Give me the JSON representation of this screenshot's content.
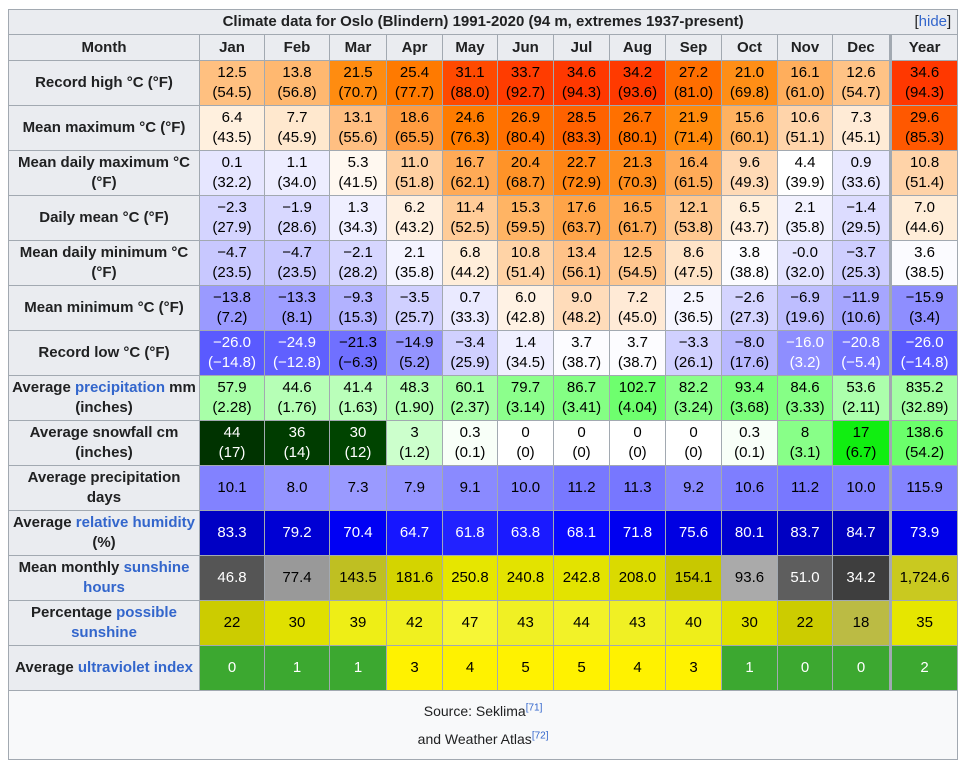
{
  "title": "Climate data for Oslo (Blindern) 1991-2020 (94 m, extremes 1937-present)",
  "hide_link": {
    "open": "[",
    "label": "hide",
    "close": "]"
  },
  "header": {
    "month": "Month",
    "months": [
      "Jan",
      "Feb",
      "Mar",
      "Apr",
      "May",
      "Jun",
      "Jul",
      "Aug",
      "Sep",
      "Oct",
      "Nov",
      "Dec"
    ],
    "year": "Year"
  },
  "rows": [
    {
      "label": [
        {
          "t": "Record high °C (°F)"
        }
      ],
      "cells": [
        [
          "12.5",
          "(54.5)",
          "#ffc080"
        ],
        [
          "13.8",
          "(56.8)",
          "#ffb870"
        ],
        [
          "21.5",
          "(70.7)",
          "#ff8c10"
        ],
        [
          "25.4",
          "(77.7)",
          "#ff7a00"
        ],
        [
          "31.1",
          "(88.0)",
          "#ff4a00"
        ],
        [
          "33.7",
          "(92.7)",
          "#ff3c00"
        ],
        [
          "34.6",
          "(94.3)",
          "#ff3800"
        ],
        [
          "34.2",
          "(93.6)",
          "#ff3a00"
        ],
        [
          "27.2",
          "(81.0)",
          "#ff6e00"
        ],
        [
          "21.0",
          "(69.8)",
          "#ff8e16"
        ],
        [
          "16.1",
          "(61.0)",
          "#ffae5c"
        ],
        [
          "12.6",
          "(54.7)",
          "#ffc386"
        ],
        [
          "34.6",
          "(94.3)",
          "#ff3800"
        ]
      ]
    },
    {
      "label": [
        {
          "t": "Mean maximum °C (°F)"
        }
      ],
      "cells": [
        [
          "6.4",
          "(43.5)",
          "#fff0de"
        ],
        [
          "7.7",
          "(45.9)",
          "#ffe8ce"
        ],
        [
          "13.1",
          "(55.6)",
          "#ffbf82"
        ],
        [
          "18.6",
          "(65.5)",
          "#ff9c40"
        ],
        [
          "24.6",
          "(76.3)",
          "#ff7c00"
        ],
        [
          "26.9",
          "(80.4)",
          "#ff7000"
        ],
        [
          "28.5",
          "(83.3)",
          "#ff6200"
        ],
        [
          "26.7",
          "(80.1)",
          "#ff7000"
        ],
        [
          "21.9",
          "(71.4)",
          "#ff8a0c"
        ],
        [
          "15.6",
          "(60.1)",
          "#ffb260"
        ],
        [
          "10.6",
          "(51.1)",
          "#ffd4aa"
        ],
        [
          "7.3",
          "(45.1)",
          "#ffebd6"
        ],
        [
          "29.6",
          "(85.3)",
          "#ff5800"
        ]
      ]
    },
    {
      "label": [
        {
          "t": "Mean daily maximum °C (°F)"
        }
      ],
      "cells": [
        [
          "0.1",
          "(32.2)",
          "#e6e6ff"
        ],
        [
          "1.1",
          "(34.0)",
          "#ededff"
        ],
        [
          "5.3",
          "(41.5)",
          "#fff8f0"
        ],
        [
          "11.0",
          "(51.8)",
          "#ffd0a2"
        ],
        [
          "16.7",
          "(62.1)",
          "#ffaa56"
        ],
        [
          "20.4",
          "(68.7)",
          "#ff9328"
        ],
        [
          "22.7",
          "(72.9)",
          "#ff8514"
        ],
        [
          "21.3",
          "(70.3)",
          "#ff8e1e"
        ],
        [
          "16.4",
          "(61.5)",
          "#ffab58"
        ],
        [
          "9.6",
          "(49.3)",
          "#ffdab6"
        ],
        [
          "4.4",
          "(39.9)",
          "#ffffff"
        ],
        [
          "0.9",
          "(33.6)",
          "#e8e8ff"
        ],
        [
          "10.8",
          "(51.4)",
          "#ffd3a8"
        ]
      ]
    },
    {
      "label": [
        {
          "t": "Daily mean °C (°F)"
        }
      ],
      "cells": [
        [
          "−2.3",
          "(27.9)",
          "#d4d4ff"
        ],
        [
          "−1.9",
          "(28.6)",
          "#d8d8ff"
        ],
        [
          "1.3",
          "(34.3)",
          "#efefff"
        ],
        [
          "6.2",
          "(43.2)",
          "#fff0e0"
        ],
        [
          "11.4",
          "(52.5)",
          "#ffcc98"
        ],
        [
          "15.3",
          "(59.5)",
          "#ffb464"
        ],
        [
          "17.6",
          "(63.7)",
          "#ffa448"
        ],
        [
          "16.5",
          "(61.7)",
          "#ffab56"
        ],
        [
          "12.1",
          "(53.8)",
          "#ffc890"
        ],
        [
          "6.5",
          "(43.7)",
          "#ffefdc"
        ],
        [
          "2.1",
          "(35.8)",
          "#f2f2ff"
        ],
        [
          "−1.4",
          "(29.5)",
          "#dcdcff"
        ],
        [
          "7.0",
          "(44.6)",
          "#ffedd8"
        ]
      ]
    },
    {
      "label": [
        {
          "t": "Mean daily minimum °C (°F)"
        }
      ],
      "cells": [
        [
          "−4.7",
          "(23.5)",
          "#c8c8ff"
        ],
        [
          "−4.7",
          "(23.5)",
          "#c8c8ff"
        ],
        [
          "−2.1",
          "(28.2)",
          "#d6d6ff"
        ],
        [
          "2.1",
          "(35.8)",
          "#f4f4ff"
        ],
        [
          "6.8",
          "(44.2)",
          "#ffeeda"
        ],
        [
          "10.8",
          "(51.4)",
          "#ffd3a6"
        ],
        [
          "13.4",
          "(56.1)",
          "#ffc288"
        ],
        [
          "12.5",
          "(54.5)",
          "#ffc68e"
        ],
        [
          "8.6",
          "(47.5)",
          "#ffe4c8"
        ],
        [
          "3.8",
          "(38.8)",
          "#fcfcff"
        ],
        [
          "-0.0",
          "(32.0)",
          "#e4e4ff"
        ],
        [
          "−3.7",
          "(25.3)",
          "#ceceff"
        ],
        [
          "3.6",
          "(38.5)",
          "#fbfbff"
        ]
      ]
    },
    {
      "label": [
        {
          "t": "Mean minimum °C (°F)"
        }
      ],
      "cells": [
        [
          "−13.8",
          "(7.2)",
          "#9a9aff"
        ],
        [
          "−13.3",
          "(8.1)",
          "#9d9dff"
        ],
        [
          "−9.3",
          "(15.3)",
          "#b2b2ff"
        ],
        [
          "−3.5",
          "(25.7)",
          "#d0d0ff"
        ],
        [
          "0.7",
          "(33.3)",
          "#eaeaff"
        ],
        [
          "6.0",
          "(42.8)",
          "#fff2e4"
        ],
        [
          "9.0",
          "(48.2)",
          "#ffdcba"
        ],
        [
          "7.2",
          "(45.0)",
          "#ffead6"
        ],
        [
          "2.5",
          "(36.5)",
          "#f6f6ff"
        ],
        [
          "−2.6",
          "(27.3)",
          "#d4d4ff"
        ],
        [
          "−6.9",
          "(19.6)",
          "#bebeff"
        ],
        [
          "−11.9",
          "(10.6)",
          "#a6a6ff"
        ],
        [
          "−15.9",
          "(3.4)",
          "#8e8eff"
        ]
      ]
    },
    {
      "label": [
        {
          "t": "Record low °C (°F)"
        }
      ],
      "cells": [
        [
          "−26.0",
          "(−14.8)",
          "#5a5aff",
          "#ffffff"
        ],
        [
          "−24.9",
          "(−12.8)",
          "#6060ff",
          "#ffffff"
        ],
        [
          "−21.3",
          "(−6.3)",
          "#7070ff",
          "#000000"
        ],
        [
          "−14.9",
          "(5.2)",
          "#9494ff"
        ],
        [
          "−3.4",
          "(25.9)",
          "#d0d0ff"
        ],
        [
          "1.4",
          "(34.5)",
          "#f0f0ff"
        ],
        [
          "3.7",
          "(38.7)",
          "#fcfcff"
        ],
        [
          "3.7",
          "(38.7)",
          "#fcfcff"
        ],
        [
          "−3.3",
          "(26.1)",
          "#d0d0ff"
        ],
        [
          "−8.0",
          "(17.6)",
          "#b8b8ff"
        ],
        [
          "−16.0",
          "(3.2)",
          "#8e8eff",
          "#ffffff"
        ],
        [
          "−20.8",
          "(−5.4)",
          "#7474ff",
          "#ffffff"
        ],
        [
          "−26.0",
          "(−14.8)",
          "#5a5aff",
          "#ffffff"
        ]
      ]
    },
    {
      "label": [
        {
          "t": "Average "
        },
        {
          "t": "precipitation",
          "link": true
        },
        {
          "t": " mm (inches)"
        }
      ],
      "cells": [
        [
          "57.9",
          "(2.28)",
          "#a8ffa8"
        ],
        [
          "44.6",
          "(1.76)",
          "#b6ffb6"
        ],
        [
          "41.4",
          "(1.63)",
          "#baffba"
        ],
        [
          "48.3",
          "(1.90)",
          "#b2ffb2"
        ],
        [
          "60.1",
          "(2.37)",
          "#a6ffa6"
        ],
        [
          "79.7",
          "(3.14)",
          "#8cff8c"
        ],
        [
          "86.7",
          "(3.41)",
          "#84ff84"
        ],
        [
          "102.7",
          "(4.04)",
          "#6eff6e"
        ],
        [
          "82.2",
          "(3.24)",
          "#8aff8a"
        ],
        [
          "93.4",
          "(3.68)",
          "#7cff7c"
        ],
        [
          "84.6",
          "(3.33)",
          "#86ff86"
        ],
        [
          "53.6",
          "(2.11)",
          "#acffac"
        ],
        [
          "835.2",
          "(32.89)",
          "#a4ffa4"
        ]
      ]
    },
    {
      "label": [
        {
          "t": "Average snowfall cm (inches)"
        }
      ],
      "cells": [
        [
          "44",
          "(17)",
          "#003300",
          "#ffffff"
        ],
        [
          "36",
          "(14)",
          "#003c00",
          "#ffffff"
        ],
        [
          "30",
          "(12)",
          "#004400",
          "#ffffff"
        ],
        [
          "3",
          "(1.2)",
          "#ccffcc"
        ],
        [
          "0.3",
          "(0.1)",
          "#f8fff8"
        ],
        [
          "0",
          "(0)",
          "#ffffff"
        ],
        [
          "0",
          "(0)",
          "#ffffff"
        ],
        [
          "0",
          "(0)",
          "#ffffff"
        ],
        [
          "0",
          "(0)",
          "#ffffff"
        ],
        [
          "0.3",
          "(0.1)",
          "#f8fff8"
        ],
        [
          "8",
          "(3.1)",
          "#88ff88"
        ],
        [
          "17",
          "(6.7)",
          "#11ee11"
        ],
        [
          "138.6",
          "(54.2)",
          "#6bff6b"
        ]
      ]
    },
    {
      "label": [
        {
          "t": "Average precipitation days"
        }
      ],
      "cells": [
        [
          "10.1",
          "",
          "#8282ff"
        ],
        [
          "8.0",
          "",
          "#9494ff"
        ],
        [
          "7.3",
          "",
          "#9a9aff"
        ],
        [
          "7.9",
          "",
          "#9595ff"
        ],
        [
          "9.1",
          "",
          "#8a8aff"
        ],
        [
          "10.0",
          "",
          "#8383ff"
        ],
        [
          "11.2",
          "",
          "#7878ff"
        ],
        [
          "11.3",
          "",
          "#7777ff"
        ],
        [
          "9.2",
          "",
          "#8989ff"
        ],
        [
          "10.6",
          "",
          "#7e7eff"
        ],
        [
          "11.2",
          "",
          "#7878ff"
        ],
        [
          "10.0",
          "",
          "#8383ff"
        ],
        [
          "115.9",
          "",
          "#8484ff"
        ]
      ]
    },
    {
      "label": [
        {
          "t": "Average "
        },
        {
          "t": "relative humidity",
          "link": true
        },
        {
          "t": " (%)"
        }
      ],
      "cells": [
        [
          "83.3",
          "",
          "#0000c4",
          "#ffffff"
        ],
        [
          "79.2",
          "",
          "#0000d4",
          "#ffffff"
        ],
        [
          "70.4",
          "",
          "#0000f4",
          "#ffffff"
        ],
        [
          "64.7",
          "",
          "#1616ff",
          "#ffffff"
        ],
        [
          "61.8",
          "",
          "#2222ff",
          "#ffffff"
        ],
        [
          "63.8",
          "",
          "#1a1aff",
          "#ffffff"
        ],
        [
          "68.1",
          "",
          "#0a0aff",
          "#ffffff"
        ],
        [
          "71.8",
          "",
          "#0000f0",
          "#ffffff"
        ],
        [
          "75.6",
          "",
          "#0000e2",
          "#ffffff"
        ],
        [
          "80.1",
          "",
          "#0000d0",
          "#ffffff"
        ],
        [
          "83.7",
          "",
          "#0000c2",
          "#ffffff"
        ],
        [
          "84.7",
          "",
          "#0000be",
          "#ffffff"
        ],
        [
          "73.9",
          "",
          "#0000e8",
          "#ffffff"
        ]
      ]
    },
    {
      "label": [
        {
          "t": "Mean monthly "
        },
        {
          "t": "sunshine hours",
          "link": true
        }
      ],
      "cells": [
        [
          "46.8",
          "",
          "#555555",
          "#ffffff"
        ],
        [
          "77.4",
          "",
          "#999999"
        ],
        [
          "143.5",
          "",
          "#bfbf22"
        ],
        [
          "181.6",
          "",
          "#d4d400"
        ],
        [
          "250.8",
          "",
          "#e6e600"
        ],
        [
          "240.8",
          "",
          "#e3e300"
        ],
        [
          "242.8",
          "",
          "#e3e300"
        ],
        [
          "208.0",
          "",
          "#dada00"
        ],
        [
          "154.1",
          "",
          "#c8c800"
        ],
        [
          "93.6",
          "",
          "#aaaaaa"
        ],
        [
          "51.0",
          "",
          "#5e5e5e",
          "#ffffff"
        ],
        [
          "34.2",
          "",
          "#3e3e3e",
          "#ffffff"
        ],
        [
          "1,724.6",
          "",
          "#c9c920"
        ]
      ]
    },
    {
      "label": [
        {
          "t": "Percentage "
        },
        {
          "t": "possible sunshine",
          "link": true
        }
      ],
      "cells": [
        [
          "22",
          "",
          "#cccc00"
        ],
        [
          "30",
          "",
          "#e0e000"
        ],
        [
          "39",
          "",
          "#eeee16"
        ],
        [
          "42",
          "",
          "#f0f020"
        ],
        [
          "47",
          "",
          "#f6f636"
        ],
        [
          "43",
          "",
          "#f0f024"
        ],
        [
          "44",
          "",
          "#f2f228"
        ],
        [
          "43",
          "",
          "#f0f024"
        ],
        [
          "40",
          "",
          "#eeee1a"
        ],
        [
          "30",
          "",
          "#e0e000"
        ],
        [
          "22",
          "",
          "#cccc00"
        ],
        [
          "18",
          "",
          "#bbbb44"
        ],
        [
          "35",
          "",
          "#e6e600"
        ]
      ]
    },
    {
      "label": [
        {
          "t": "Average "
        },
        {
          "t": "ultraviolet index",
          "link": true
        }
      ],
      "cells": [
        [
          "0",
          "",
          "#3ca830",
          "#ffffff"
        ],
        [
          "1",
          "",
          "#3ca830",
          "#ffffff"
        ],
        [
          "1",
          "",
          "#3ca830",
          "#ffffff"
        ],
        [
          "3",
          "",
          "#fff200"
        ],
        [
          "4",
          "",
          "#fff200"
        ],
        [
          "5",
          "",
          "#fff200"
        ],
        [
          "5",
          "",
          "#fff200"
        ],
        [
          "4",
          "",
          "#fff200"
        ],
        [
          "3",
          "",
          "#fff200"
        ],
        [
          "1",
          "",
          "#3ca830",
          "#ffffff"
        ],
        [
          "0",
          "",
          "#3ca830",
          "#ffffff"
        ],
        [
          "0",
          "",
          "#3ca830",
          "#ffffff"
        ],
        [
          "2",
          "",
          "#3ca830",
          "#ffffff"
        ]
      ]
    }
  ],
  "footer": {
    "source_text": "Source: Seklima",
    "ref1": "[71]",
    "line2_text": "and Weather Atlas",
    "ref2": "[72]"
  }
}
